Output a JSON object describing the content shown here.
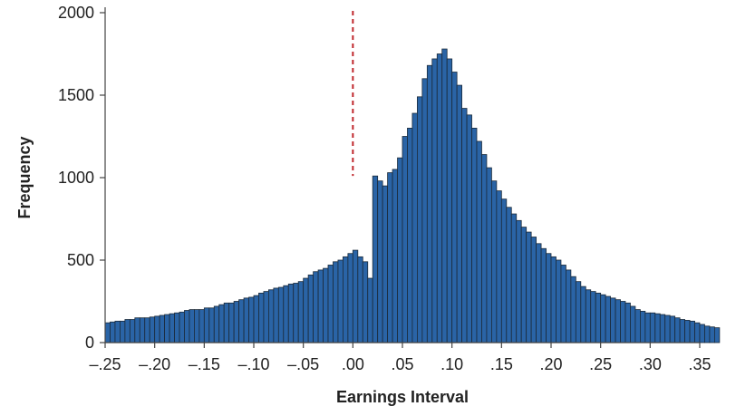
{
  "chart_data": {
    "type": "bar",
    "title": "",
    "xlabel": "Earnings Interval",
    "ylabel": "Frequency",
    "xlim": [
      -0.25,
      0.35
    ],
    "ylim": [
      0,
      2000
    ],
    "bin_width": 0.005,
    "grid": false,
    "legend": "none",
    "x_ticks": [
      {
        "value": -0.25,
        "label": "–.25"
      },
      {
        "value": -0.2,
        "label": "–.20"
      },
      {
        "value": -0.15,
        "label": "–.15"
      },
      {
        "value": -0.1,
        "label": "–.10"
      },
      {
        "value": -0.05,
        "label": "–.05"
      },
      {
        "value": 0.0,
        "label": ".00"
      },
      {
        "value": 0.05,
        "label": ".05"
      },
      {
        "value": 0.1,
        "label": ".10"
      },
      {
        "value": 0.15,
        "label": ".15"
      },
      {
        "value": 0.2,
        "label": ".20"
      },
      {
        "value": 0.25,
        "label": ".25"
      },
      {
        "value": 0.3,
        "label": ".30"
      },
      {
        "value": 0.35,
        "label": ".35"
      }
    ],
    "y_ticks": [
      {
        "value": 0,
        "label": "0"
      },
      {
        "value": 500,
        "label": "500"
      },
      {
        "value": 1000,
        "label": "1000"
      },
      {
        "value": 1500,
        "label": "1500"
      },
      {
        "value": 2000,
        "label": "2000"
      }
    ],
    "reference_line": {
      "x": 0.0,
      "color": "#c0282d",
      "style": "dashed"
    },
    "bar_color": "#2a64a6",
    "bin_start": -0.25,
    "values": [
      120,
      125,
      130,
      130,
      140,
      140,
      150,
      150,
      150,
      155,
      160,
      165,
      170,
      175,
      180,
      185,
      195,
      200,
      200,
      200,
      210,
      210,
      220,
      230,
      240,
      240,
      250,
      260,
      270,
      275,
      285,
      300,
      310,
      320,
      330,
      335,
      345,
      355,
      360,
      370,
      390,
      410,
      430,
      440,
      450,
      470,
      490,
      500,
      520,
      540,
      560,
      520,
      490,
      390,
      1010,
      980,
      950,
      1030,
      1050,
      1120,
      1250,
      1300,
      1390,
      1490,
      1600,
      1680,
      1720,
      1750,
      1780,
      1720,
      1640,
      1560,
      1420,
      1380,
      1300,
      1220,
      1140,
      1060,
      980,
      920,
      870,
      820,
      780,
      740,
      700,
      670,
      640,
      600,
      570,
      540,
      520,
      500,
      470,
      440,
      400,
      370,
      340,
      320,
      310,
      300,
      290,
      280,
      270,
      260,
      250,
      240,
      220,
      200,
      190,
      180,
      180,
      175,
      170,
      165,
      160,
      150,
      140,
      135,
      130,
      120,
      110,
      100,
      95,
      90
    ]
  }
}
